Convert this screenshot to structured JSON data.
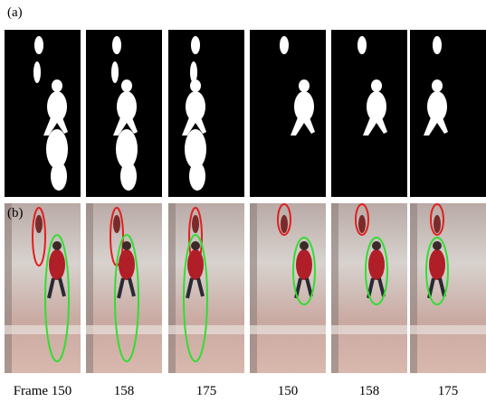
{
  "labels": {
    "a": "(a)",
    "b": "(b)"
  },
  "frames": [
    "Frame 150",
    "158",
    "175",
    "150",
    "158",
    "175"
  ]
}
